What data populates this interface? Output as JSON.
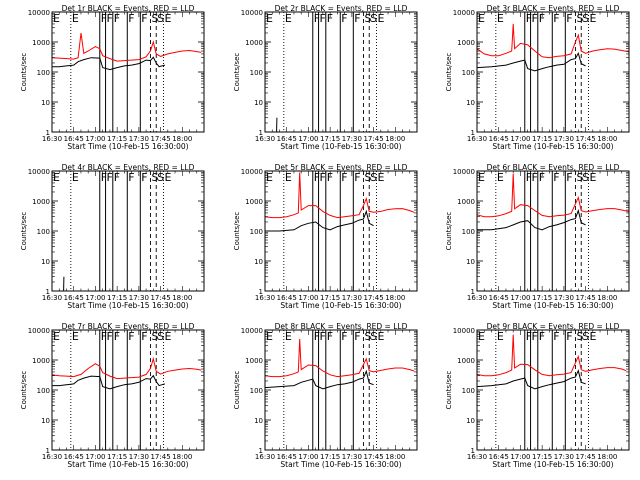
{
  "shared": {
    "xlabel": "Start Time (10-Feb-15 16:30:00)",
    "ylabel": "Counts/sec",
    "x_ticks": [
      "16:30",
      "16:45",
      "17:00",
      "17:15",
      "17:30",
      "17:45",
      "18:00"
    ],
    "x_tick_minutes": [
      0,
      15,
      30,
      45,
      60,
      75,
      90
    ],
    "xlim_minutes": [
      0,
      105
    ],
    "y_scale": "log",
    "y_tick_values": [
      1,
      10,
      100,
      1000,
      10000
    ],
    "y_tick_labels": [
      "1",
      "10",
      "100",
      "1000",
      "10000"
    ],
    "colors": {
      "events": "#000000",
      "lld": "#ff0000"
    },
    "marker_lines": [
      {
        "minute": 13,
        "style": "dotted",
        "label": "E"
      },
      {
        "minute": 33,
        "style": "solid",
        "label": "F"
      },
      {
        "minute": 37,
        "style": "solid",
        "label": "F"
      },
      {
        "minute": 42,
        "style": "solid",
        "label": "F"
      },
      {
        "minute": 52,
        "style": "solid",
        "label": "F"
      },
      {
        "minute": 61,
        "style": "solid",
        "label": "F"
      },
      {
        "minute": 68,
        "style": "dashed",
        "label": "S"
      },
      {
        "minute": 72,
        "style": "dashed",
        "label": "S"
      },
      {
        "minute": 77,
        "style": "dotted",
        "label": "E"
      }
    ]
  },
  "chart_data": [
    {
      "type": "line",
      "title": "Det 1r BLACK = Events, RED = LLD",
      "ylim": [
        1,
        10000
      ],
      "series": [
        {
          "name": "Events",
          "color": "#000000",
          "x": [
            0,
            5,
            10,
            15,
            18,
            22,
            27,
            33,
            35,
            40,
            45,
            50,
            55,
            60,
            65,
            68,
            70,
            72,
            74,
            76,
            78
          ],
          "y": [
            150,
            150,
            160,
            170,
            220,
            260,
            300,
            290,
            140,
            120,
            140,
            160,
            170,
            190,
            250,
            240,
            310,
            200,
            150,
            160,
            170
          ]
        },
        {
          "name": "LLD",
          "color": "#ff0000",
          "x": [
            0,
            5,
            10,
            15,
            18,
            20,
            22,
            25,
            30,
            33,
            35,
            40,
            45,
            50,
            55,
            60,
            65,
            68,
            70,
            72,
            75,
            80,
            85,
            90,
            95,
            100,
            103
          ],
          "y": [
            300,
            290,
            280,
            270,
            300,
            2000,
            420,
            500,
            700,
            600,
            350,
            280,
            230,
            240,
            250,
            260,
            320,
            500,
            1000,
            400,
            330,
            400,
            450,
            500,
            520,
            480,
            450
          ]
        }
      ]
    },
    {
      "type": "line",
      "title": "Det 2r BLACK = Events, RED = LLD",
      "ylim": [
        1,
        10000
      ],
      "series": [
        {
          "name": "Events",
          "color": "#000000",
          "x": [
            8,
            8.2
          ],
          "y": [
            1,
            3
          ]
        }
      ]
    },
    {
      "type": "line",
      "title": "Det 3r BLACK = Events, RED = LLD",
      "ylim": [
        1,
        10000
      ],
      "series": [
        {
          "name": "Events",
          "color": "#000000",
          "x": [
            0,
            10,
            20,
            25,
            30,
            33,
            35,
            40,
            45,
            50,
            55,
            60,
            65,
            68,
            70,
            72,
            75
          ],
          "y": [
            140,
            150,
            170,
            200,
            230,
            250,
            130,
            110,
            130,
            150,
            170,
            180,
            260,
            280,
            420,
            190,
            160
          ]
        },
        {
          "name": "LLD",
          "color": "#ff0000",
          "x": [
            0,
            5,
            10,
            15,
            20,
            24,
            25,
            26,
            30,
            35,
            40,
            45,
            50,
            55,
            60,
            65,
            68,
            70,
            72,
            75,
            80,
            85,
            90,
            95,
            100,
            105
          ],
          "y": [
            600,
            400,
            350,
            350,
            420,
            500,
            4000,
            600,
            900,
            800,
            500,
            320,
            300,
            330,
            350,
            400,
            1000,
            1700,
            500,
            420,
            500,
            550,
            600,
            580,
            520,
            470
          ]
        }
      ]
    },
    {
      "type": "line",
      "title": "Det 4r BLACK = Events, RED = LLD",
      "ylim": [
        1,
        10000
      ],
      "series": [
        {
          "name": "Events",
          "color": "#000000",
          "x": [
            8,
            8.2
          ],
          "y": [
            1,
            3
          ]
        }
      ]
    },
    {
      "type": "line",
      "title": "Det 5r BLACK = Events, RED = LLD",
      "ylim": [
        1,
        10000
      ],
      "series": [
        {
          "name": "Events",
          "color": "#000000",
          "x": [
            0,
            10,
            20,
            25,
            30,
            35,
            40,
            45,
            50,
            55,
            60,
            65,
            68,
            70,
            72,
            75
          ],
          "y": [
            100,
            100,
            110,
            150,
            180,
            200,
            130,
            110,
            140,
            160,
            180,
            230,
            250,
            450,
            180,
            150
          ]
        },
        {
          "name": "LLD",
          "color": "#ff0000",
          "x": [
            0,
            5,
            10,
            15,
            20,
            23,
            24,
            25,
            30,
            35,
            40,
            45,
            50,
            55,
            60,
            65,
            68,
            70,
            72,
            75,
            80,
            85,
            90,
            95,
            100,
            103
          ],
          "y": [
            300,
            280,
            280,
            300,
            350,
            400,
            9000,
            500,
            700,
            700,
            450,
            330,
            280,
            300,
            320,
            350,
            700,
            1200,
            450,
            420,
            450,
            520,
            550,
            560,
            480,
            420
          ]
        }
      ]
    },
    {
      "type": "line",
      "title": "Det 6r BLACK = Events, RED = LLD",
      "ylim": [
        1,
        10000
      ],
      "series": [
        {
          "name": "Events",
          "color": "#000000",
          "x": [
            0,
            10,
            20,
            25,
            30,
            35,
            40,
            45,
            50,
            55,
            60,
            65,
            68,
            70,
            72,
            75
          ],
          "y": [
            110,
            110,
            130,
            160,
            200,
            220,
            130,
            110,
            140,
            160,
            190,
            240,
            260,
            480,
            190,
            160
          ]
        },
        {
          "name": "LLD",
          "color": "#ff0000",
          "x": [
            0,
            5,
            10,
            15,
            20,
            24,
            25,
            26,
            30,
            35,
            40,
            45,
            50,
            55,
            60,
            65,
            68,
            70,
            72,
            75,
            80,
            85,
            90,
            95,
            100,
            105
          ],
          "y": [
            350,
            300,
            300,
            320,
            380,
            450,
            8000,
            550,
            750,
            700,
            480,
            330,
            300,
            320,
            340,
            380,
            800,
            1300,
            480,
            430,
            480,
            520,
            560,
            560,
            500,
            440
          ]
        }
      ]
    },
    {
      "type": "line",
      "title": "Det 7r BLACK = Events, RED = LLD",
      "ylim": [
        1,
        10000
      ],
      "series": [
        {
          "name": "Events",
          "color": "#000000",
          "x": [
            0,
            5,
            10,
            15,
            18,
            22,
            27,
            33,
            35,
            40,
            45,
            50,
            55,
            60,
            65,
            68,
            70,
            72,
            74,
            76,
            78
          ],
          "y": [
            140,
            140,
            150,
            160,
            210,
            250,
            290,
            280,
            130,
            110,
            130,
            150,
            160,
            180,
            240,
            230,
            300,
            190,
            140,
            150,
            160
          ]
        },
        {
          "name": "LLD",
          "color": "#ff0000",
          "x": [
            0,
            5,
            10,
            15,
            20,
            25,
            30,
            33,
            35,
            40,
            45,
            50,
            55,
            60,
            65,
            68,
            70,
            72,
            75,
            80,
            85,
            90,
            95,
            100,
            103
          ],
          "y": [
            320,
            300,
            290,
            280,
            330,
            520,
            750,
            620,
            380,
            290,
            240,
            250,
            260,
            270,
            330,
            520,
            1100,
            420,
            340,
            420,
            460,
            500,
            520,
            490,
            460
          ]
        }
      ]
    },
    {
      "type": "line",
      "title": "Det 8r BLACK = Events, RED = LLD",
      "ylim": [
        1,
        10000
      ],
      "series": [
        {
          "name": "Events",
          "color": "#000000",
          "x": [
            0,
            10,
            20,
            25,
            30,
            33,
            35,
            40,
            45,
            50,
            55,
            60,
            65,
            68,
            70,
            72,
            75
          ],
          "y": [
            120,
            130,
            140,
            180,
            210,
            230,
            140,
            110,
            130,
            150,
            160,
            180,
            230,
            250,
            420,
            170,
            150
          ]
        },
        {
          "name": "LLD",
          "color": "#ff0000",
          "x": [
            0,
            5,
            10,
            15,
            20,
            23,
            24,
            25,
            30,
            35,
            40,
            45,
            50,
            55,
            60,
            65,
            68,
            70,
            72,
            75,
            80,
            85,
            90,
            95,
            100,
            103
          ],
          "y": [
            300,
            280,
            280,
            300,
            350,
            400,
            5000,
            480,
            680,
            650,
            430,
            320,
            280,
            300,
            320,
            360,
            700,
            1100,
            440,
            400,
            450,
            500,
            540,
            540,
            480,
            430
          ]
        }
      ]
    },
    {
      "type": "line",
      "title": "Det 9r BLACK = Events, RED = LLD",
      "ylim": [
        1,
        10000
      ],
      "series": [
        {
          "name": "Events",
          "color": "#000000",
          "x": [
            0,
            10,
            20,
            25,
            30,
            33,
            35,
            40,
            45,
            50,
            55,
            60,
            65,
            68,
            70,
            72,
            75
          ],
          "y": [
            130,
            140,
            160,
            200,
            230,
            250,
            140,
            110,
            130,
            150,
            170,
            190,
            250,
            270,
            440,
            180,
            160
          ]
        },
        {
          "name": "LLD",
          "color": "#ff0000",
          "x": [
            0,
            5,
            10,
            15,
            20,
            24,
            25,
            26,
            30,
            35,
            40,
            45,
            50,
            55,
            60,
            65,
            68,
            70,
            72,
            75,
            80,
            85,
            90,
            95,
            100,
            103
          ],
          "y": [
            330,
            300,
            300,
            320,
            380,
            460,
            7000,
            540,
            720,
            700,
            470,
            330,
            300,
            320,
            340,
            380,
            800,
            1300,
            470,
            420,
            470,
            520,
            560,
            560,
            500,
            440
          ]
        }
      ]
    }
  ]
}
